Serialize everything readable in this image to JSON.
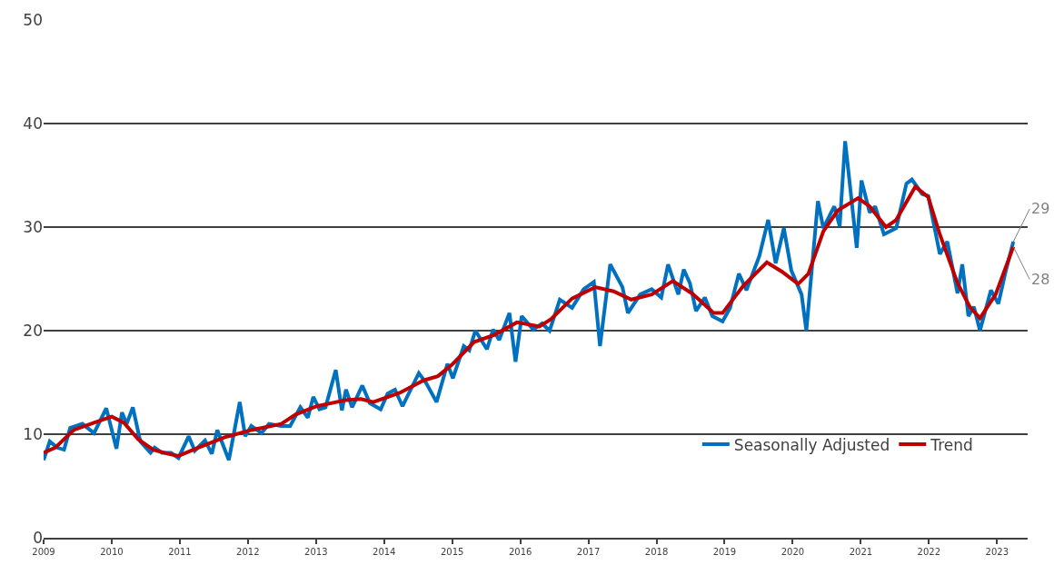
{
  "chart_data": {
    "type": "line",
    "xlim": [
      2009,
      2023.45
    ],
    "xticks": [
      2009,
      2010,
      2011,
      2012,
      2013,
      2014,
      2015,
      2016,
      2017,
      2018,
      2019,
      2020,
      2021,
      2022,
      2023
    ],
    "ylim": [
      0,
      50
    ],
    "yticks": [
      0,
      10,
      20,
      30,
      40,
      50
    ],
    "grid": "y",
    "legend": "bottom right",
    "line_style": "solid",
    "series": [
      {
        "name": "Seasonally Adjusted",
        "color": "#0070c0",
        "x": [
          2009.0,
          2009.09,
          2009.2,
          2009.3,
          2009.39,
          2009.57,
          2009.74,
          2009.92,
          2010.07,
          2010.15,
          2010.22,
          2010.31,
          2010.42,
          2010.57,
          2010.63,
          2010.74,
          2010.87,
          2010.98,
          2011.13,
          2011.22,
          2011.37,
          2011.47,
          2011.55,
          2011.72,
          2011.88,
          2011.96,
          2012.05,
          2012.2,
          2012.31,
          2012.49,
          2012.62,
          2012.77,
          2012.88,
          2012.96,
          2013.05,
          2013.14,
          2013.29,
          2013.38,
          2013.44,
          2013.53,
          2013.68,
          2013.79,
          2013.95,
          2014.05,
          2014.16,
          2014.27,
          2014.51,
          2014.62,
          2014.77,
          2014.93,
          2015.01,
          2015.17,
          2015.25,
          2015.34,
          2015.51,
          2015.6,
          2015.69,
          2015.84,
          2015.93,
          2016.02,
          2016.19,
          2016.32,
          2016.43,
          2016.58,
          2016.76,
          2016.93,
          2017.08,
          2017.17,
          2017.32,
          2017.5,
          2017.58,
          2017.76,
          2017.93,
          2018.07,
          2018.17,
          2018.32,
          2018.4,
          2018.49,
          2018.58,
          2018.71,
          2018.82,
          2018.97,
          2019.08,
          2019.21,
          2019.32,
          2019.51,
          2019.64,
          2019.75,
          2019.87,
          2019.98,
          2020.13,
          2020.2,
          2020.37,
          2020.45,
          2020.61,
          2020.69,
          2020.77,
          2020.94,
          2021.01,
          2021.13,
          2021.21,
          2021.34,
          2021.52,
          2021.67,
          2021.75,
          2021.9,
          2021.99,
          2022.16,
          2022.27,
          2022.42,
          2022.49,
          2022.58,
          2022.66,
          2022.75,
          2022.91,
          2023.02,
          2023.13,
          2023.24
        ],
        "values": [
          7.5,
          9.3,
          8.7,
          8.5,
          10.6,
          11.0,
          10.1,
          12.5,
          8.6,
          12.1,
          11.0,
          12.6,
          9.3,
          8.2,
          8.7,
          8.2,
          8.2,
          7.7,
          9.8,
          8.4,
          9.4,
          8.1,
          10.4,
          7.5,
          13.1,
          9.8,
          10.8,
          10.1,
          11.0,
          10.8,
          10.8,
          12.6,
          11.6,
          13.6,
          12.4,
          12.6,
          16.2,
          12.3,
          14.3,
          12.6,
          14.7,
          13.0,
          12.4,
          13.9,
          14.3,
          12.7,
          15.9,
          14.9,
          13.1,
          16.8,
          15.4,
          18.5,
          18.1,
          20.0,
          18.2,
          20.1,
          19.1,
          21.7,
          17.0,
          21.4,
          20.1,
          20.7,
          20.0,
          23.0,
          22.2,
          24.0,
          24.7,
          18.5,
          26.4,
          24.2,
          21.7,
          23.5,
          24.0,
          23.2,
          26.4,
          23.5,
          25.9,
          24.6,
          21.9,
          23.2,
          21.4,
          20.9,
          22.2,
          25.5,
          23.9,
          27.2,
          30.7,
          26.5,
          29.9,
          25.8,
          23.5,
          20.0,
          32.5,
          29.9,
          32.0,
          30.1,
          38.3,
          28.0,
          34.5,
          31.4,
          32.0,
          29.3,
          29.9,
          34.2,
          34.6,
          33.2,
          33.0,
          27.4,
          28.6,
          23.6,
          26.4,
          21.4,
          22.3,
          20.0,
          23.9,
          22.6,
          25.8,
          28.6
        ]
      },
      {
        "name": "Trend",
        "color": "#c00000",
        "x": [
          2009.0,
          2009.17,
          2009.44,
          2009.74,
          2010.0,
          2010.18,
          2010.39,
          2010.61,
          2010.83,
          2010.98,
          2011.27,
          2011.66,
          2012.05,
          2012.49,
          2012.7,
          2013.01,
          2013.44,
          2013.66,
          2013.84,
          2014.23,
          2014.58,
          2014.79,
          2015.01,
          2015.32,
          2015.62,
          2015.95,
          2016.28,
          2016.45,
          2016.76,
          2017.1,
          2017.37,
          2017.63,
          2017.93,
          2018.24,
          2018.54,
          2018.84,
          2018.97,
          2019.27,
          2019.62,
          2019.84,
          2020.08,
          2020.23,
          2020.45,
          2020.66,
          2020.96,
          2021.13,
          2021.37,
          2021.52,
          2021.8,
          2021.99,
          2022.16,
          2022.42,
          2022.6,
          2022.75,
          2022.98,
          2023.24
        ],
        "values": [
          8.2,
          8.7,
          10.4,
          11.1,
          11.7,
          11.1,
          9.5,
          8.5,
          8.1,
          7.9,
          8.7,
          9.7,
          10.4,
          11.0,
          11.9,
          12.7,
          13.3,
          13.4,
          13.1,
          14.0,
          15.2,
          15.6,
          16.8,
          18.9,
          19.6,
          20.8,
          20.4,
          21.1,
          23.1,
          24.2,
          23.8,
          23.0,
          23.5,
          24.8,
          23.5,
          21.7,
          21.7,
          24.3,
          26.6,
          25.7,
          24.5,
          25.5,
          29.6,
          31.6,
          32.8,
          32.0,
          30.0,
          30.7,
          33.9,
          32.9,
          29.3,
          24.6,
          22.3,
          21.2,
          23.5,
          28.1
        ]
      }
    ],
    "annotations": [
      {
        "text": "29",
        "x": 2023.24,
        "y": 28.6
      },
      {
        "text": "28",
        "x": 2023.24,
        "y": 28.1
      }
    ]
  }
}
